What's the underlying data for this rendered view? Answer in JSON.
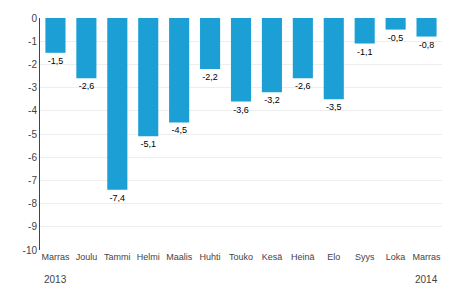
{
  "chart_data": {
    "type": "bar",
    "categories": [
      "Marras",
      "Joulu",
      "Tammi",
      "Helmi",
      "Maalis",
      "Huhti",
      "Touko",
      "Kesä",
      "Heinä",
      "Elo",
      "Syys",
      "Loka",
      "Marras"
    ],
    "values": [
      -1.5,
      -2.6,
      -7.4,
      -5.1,
      -4.5,
      -2.2,
      -3.6,
      -3.2,
      -2.6,
      -3.5,
      -1.1,
      -0.5,
      -0.8
    ],
    "value_labels": [
      "-1,5",
      "-2,6",
      "-7,4",
      "-5,1",
      "-4,5",
      "-2,2",
      "-3,6",
      "-3,2",
      "-2,6",
      "-3,5",
      "-1,1",
      "-0,5",
      "-0,8"
    ],
    "data_labels": true,
    "color": "#1b9fd4",
    "ylim": [
      -10,
      0
    ],
    "yticks": [
      0,
      -1,
      -2,
      -3,
      -4,
      -5,
      -6,
      -7,
      -8,
      -9,
      -10
    ],
    "grid": true,
    "annotations": [
      {
        "text": "2013",
        "x": 0
      },
      {
        "text": "2014",
        "x": 12
      }
    ]
  }
}
